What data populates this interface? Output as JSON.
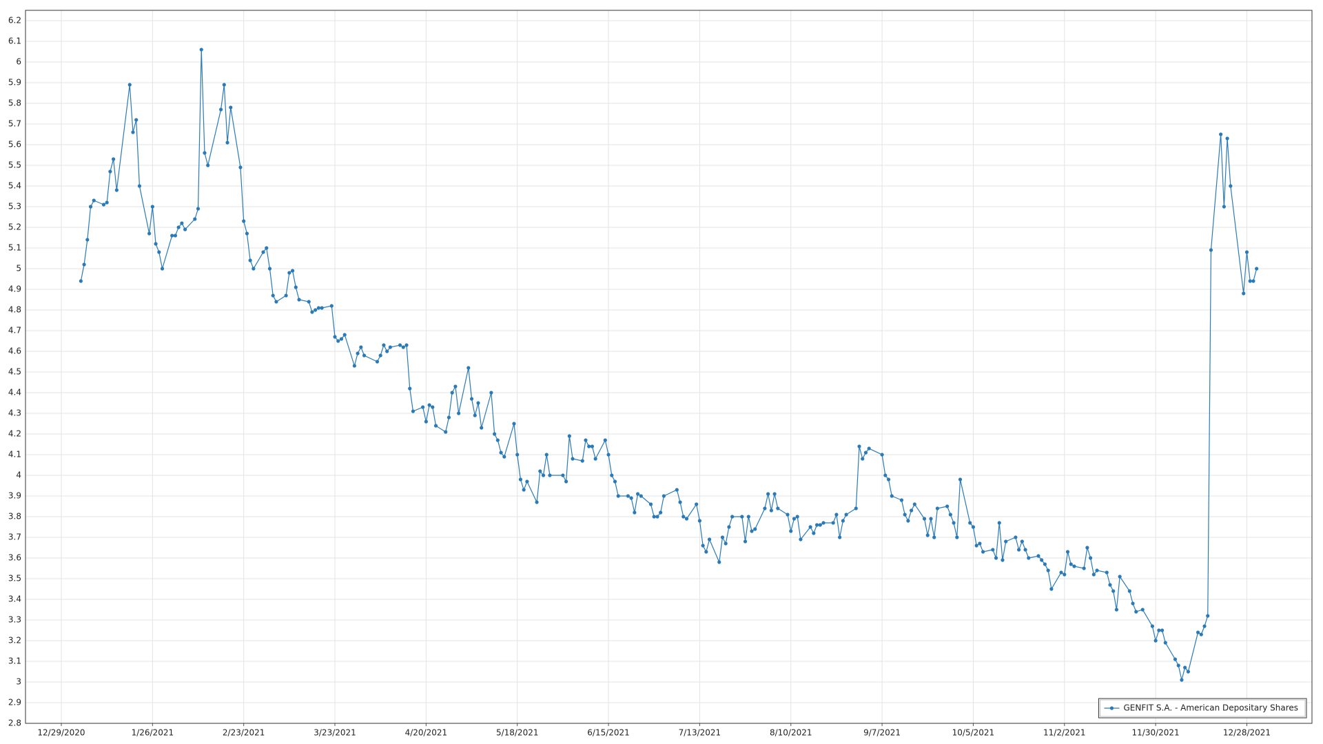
{
  "chart_data": {
    "type": "line",
    "x": [
      "1/4/2021",
      "1/5/2021",
      "1/6/2021",
      "1/7/2021",
      "1/8/2021",
      "1/11/2021",
      "1/12/2021",
      "1/13/2021",
      "1/14/2021",
      "1/15/2021",
      "1/19/2021",
      "1/20/2021",
      "1/21/2021",
      "1/22/2021",
      "1/25/2021",
      "1/26/2021",
      "1/27/2021",
      "1/28/2021",
      "1/29/2021",
      "2/1/2021",
      "2/2/2021",
      "2/3/2021",
      "2/4/2021",
      "2/5/2021",
      "2/8/2021",
      "2/9/2021",
      "2/10/2021",
      "2/11/2021",
      "2/12/2021",
      "2/16/2021",
      "2/17/2021",
      "2/18/2021",
      "2/19/2021",
      "2/22/2021",
      "2/23/2021",
      "2/24/2021",
      "2/25/2021",
      "2/26/2021",
      "3/1/2021",
      "3/2/2021",
      "3/3/2021",
      "3/4/2021",
      "3/5/2021",
      "3/8/2021",
      "3/9/2021",
      "3/10/2021",
      "3/11/2021",
      "3/12/2021",
      "3/15/2021",
      "3/16/2021",
      "3/17/2021",
      "3/18/2021",
      "3/19/2021",
      "3/22/2021",
      "3/23/2021",
      "3/24/2021",
      "3/25/2021",
      "3/26/2021",
      "3/29/2021",
      "3/30/2021",
      "3/31/2021",
      "4/1/2021",
      "4/5/2021",
      "4/6/2021",
      "4/7/2021",
      "4/8/2021",
      "4/9/2021",
      "4/12/2021",
      "4/13/2021",
      "4/14/2021",
      "4/15/2021",
      "4/16/2021",
      "4/19/2021",
      "4/20/2021",
      "4/21/2021",
      "4/22/2021",
      "4/23/2021",
      "4/26/2021",
      "4/27/2021",
      "4/28/2021",
      "4/29/2021",
      "4/30/2021",
      "5/3/2021",
      "5/4/2021",
      "5/5/2021",
      "5/6/2021",
      "5/7/2021",
      "5/10/2021",
      "5/11/2021",
      "5/12/2021",
      "5/13/2021",
      "5/14/2021",
      "5/17/2021",
      "5/18/2021",
      "5/19/2021",
      "5/20/2021",
      "5/21/2021",
      "5/24/2021",
      "5/25/2021",
      "5/26/2021",
      "5/27/2021",
      "5/28/2021",
      "6/1/2021",
      "6/2/2021",
      "6/3/2021",
      "6/4/2021",
      "6/7/2021",
      "6/8/2021",
      "6/9/2021",
      "6/10/2021",
      "6/11/2021",
      "6/14/2021",
      "6/15/2021",
      "6/16/2021",
      "6/17/2021",
      "6/18/2021",
      "6/21/2021",
      "6/22/2021",
      "6/23/2021",
      "6/24/2021",
      "6/25/2021",
      "6/28/2021",
      "6/29/2021",
      "6/30/2021",
      "7/1/2021",
      "7/2/2021",
      "7/6/2021",
      "7/7/2021",
      "7/8/2021",
      "7/9/2021",
      "7/12/2021",
      "7/13/2021",
      "7/14/2021",
      "7/15/2021",
      "7/16/2021",
      "7/19/2021",
      "7/20/2021",
      "7/21/2021",
      "7/22/2021",
      "7/23/2021",
      "7/26/2021",
      "7/27/2021",
      "7/28/2021",
      "7/29/2021",
      "7/30/2021",
      "8/2/2021",
      "8/3/2021",
      "8/4/2021",
      "8/5/2021",
      "8/6/2021",
      "8/9/2021",
      "8/10/2021",
      "8/11/2021",
      "8/12/2021",
      "8/13/2021",
      "8/16/2021",
      "8/17/2021",
      "8/18/2021",
      "8/19/2021",
      "8/20/2021",
      "8/23/2021",
      "8/24/2021",
      "8/25/2021",
      "8/26/2021",
      "8/27/2021",
      "8/30/2021",
      "8/31/2021",
      "9/1/2021",
      "9/2/2021",
      "9/3/2021",
      "9/7/2021",
      "9/8/2021",
      "9/9/2021",
      "9/10/2021",
      "9/13/2021",
      "9/14/2021",
      "9/15/2021",
      "9/16/2021",
      "9/17/2021",
      "9/20/2021",
      "9/21/2021",
      "9/22/2021",
      "9/23/2021",
      "9/24/2021",
      "9/27/2021",
      "9/28/2021",
      "9/29/2021",
      "9/30/2021",
      "10/1/2021",
      "10/4/2021",
      "10/5/2021",
      "10/6/2021",
      "10/7/2021",
      "10/8/2021",
      "10/11/2021",
      "10/12/2021",
      "10/13/2021",
      "10/14/2021",
      "10/15/2021",
      "10/18/2021",
      "10/19/2021",
      "10/20/2021",
      "10/21/2021",
      "10/22/2021",
      "10/25/2021",
      "10/26/2021",
      "10/27/2021",
      "10/28/2021",
      "10/29/2021",
      "11/1/2021",
      "11/2/2021",
      "11/3/2021",
      "11/4/2021",
      "11/5/2021",
      "11/8/2021",
      "11/9/2021",
      "11/10/2021",
      "11/11/2021",
      "11/12/2021",
      "11/15/2021",
      "11/16/2021",
      "11/17/2021",
      "11/18/2021",
      "11/19/2021",
      "11/22/2021",
      "11/23/2021",
      "11/24/2021",
      "11/26/2021",
      "11/29/2021",
      "11/30/2021",
      "12/1/2021",
      "12/2/2021",
      "12/3/2021",
      "12/6/2021",
      "12/7/2021",
      "12/8/2021",
      "12/9/2021",
      "12/10/2021",
      "12/13/2021",
      "12/14/2021",
      "12/15/2021",
      "12/16/2021",
      "12/17/2021",
      "12/20/2021",
      "12/21/2021",
      "12/22/2021",
      "12/23/2021",
      "12/27/2021",
      "12/28/2021",
      "12/29/2021",
      "12/30/2021",
      "12/31/2021"
    ],
    "series": [
      {
        "name": "GENFIT S.A. - American Depositary Shares",
        "color": "#2a7ab8",
        "values": [
          4.94,
          5.02,
          5.14,
          5.3,
          5.33,
          5.31,
          5.32,
          5.47,
          5.53,
          5.38,
          5.89,
          5.66,
          5.72,
          5.4,
          5.17,
          5.3,
          5.12,
          5.08,
          5.0,
          5.16,
          5.16,
          5.2,
          5.22,
          5.19,
          5.24,
          5.29,
          6.06,
          5.56,
          5.5,
          5.77,
          5.89,
          5.61,
          5.78,
          5.49,
          5.23,
          5.17,
          5.04,
          5.0,
          5.08,
          5.1,
          5.0,
          4.87,
          4.84,
          4.87,
          4.98,
          4.99,
          4.91,
          4.85,
          4.84,
          4.79,
          4.8,
          4.81,
          4.81,
          4.82,
          4.67,
          4.65,
          4.66,
          4.68,
          4.53,
          4.59,
          4.62,
          4.58,
          4.55,
          4.58,
          4.63,
          4.6,
          4.62,
          4.63,
          4.62,
          4.63,
          4.42,
          4.31,
          4.33,
          4.26,
          4.34,
          4.33,
          4.24,
          4.21,
          4.28,
          4.4,
          4.43,
          4.3,
          4.52,
          4.37,
          4.29,
          4.35,
          4.23,
          4.4,
          4.2,
          4.17,
          4.11,
          4.09,
          4.25,
          4.1,
          3.98,
          3.93,
          3.97,
          3.87,
          4.02,
          4.0,
          4.1,
          4.0,
          4.0,
          3.97,
          4.19,
          4.08,
          4.07,
          4.17,
          4.14,
          4.14,
          4.08,
          4.17,
          4.1,
          4.0,
          3.97,
          3.9,
          3.9,
          3.89,
          3.82,
          3.91,
          3.9,
          3.86,
          3.8,
          3.8,
          3.82,
          3.9,
          3.93,
          3.87,
          3.8,
          3.79,
          3.86,
          3.78,
          3.66,
          3.63,
          3.69,
          3.58,
          3.7,
          3.67,
          3.75,
          3.8,
          3.8,
          3.68,
          3.8,
          3.73,
          3.74,
          3.84,
          3.91,
          3.83,
          3.91,
          3.84,
          3.81,
          3.73,
          3.79,
          3.8,
          3.69,
          3.75,
          3.72,
          3.76,
          3.76,
          3.77,
          3.77,
          3.81,
          3.7,
          3.78,
          3.81,
          3.84,
          4.14,
          4.08,
          4.11,
          4.13,
          4.1,
          4.0,
          3.98,
          3.9,
          3.88,
          3.81,
          3.78,
          3.83,
          3.86,
          3.79,
          3.71,
          3.79,
          3.7,
          3.84,
          3.85,
          3.81,
          3.77,
          3.7,
          3.98,
          3.77,
          3.75,
          3.66,
          3.67,
          3.63,
          3.64,
          3.6,
          3.77,
          3.59,
          3.68,
          3.7,
          3.64,
          3.68,
          3.64,
          3.6,
          3.61,
          3.59,
          3.57,
          3.54,
          3.45,
          3.53,
          3.52,
          3.63,
          3.57,
          3.56,
          3.55,
          3.65,
          3.6,
          3.52,
          3.54,
          3.53,
          3.47,
          3.44,
          3.35,
          3.51,
          3.44,
          3.38,
          3.34,
          3.35,
          3.27,
          3.2,
          3.25,
          3.25,
          3.19,
          3.11,
          3.08,
          3.01,
          3.07,
          3.05,
          3.24,
          3.23,
          3.27,
          3.32,
          5.09,
          5.65,
          5.3,
          5.63,
          5.4,
          4.88,
          5.08,
          4.94,
          4.94,
          5.0
        ]
      }
    ],
    "xlim": [
      "12/18/2020",
      "1/17/2022"
    ],
    "xticks": [
      "12/29/2020",
      "1/26/2021",
      "2/23/2021",
      "3/23/2021",
      "4/20/2021",
      "5/18/2021",
      "6/15/2021",
      "7/13/2021",
      "8/10/2021",
      "9/7/2021",
      "10/5/2021",
      "11/2/2021",
      "11/30/2021",
      "12/28/2021"
    ],
    "ylim": [
      2.8,
      6.25
    ],
    "yticks": [
      2.8,
      2.9,
      3,
      3.1,
      3.2,
      3.3,
      3.4,
      3.5,
      3.6,
      3.7,
      3.8,
      3.9,
      4,
      4.1,
      4.2,
      4.3,
      4.4,
      4.5,
      4.6,
      4.7,
      4.8,
      4.9,
      5,
      5.1,
      5.2,
      5.3,
      5.4,
      5.5,
      5.6,
      5.7,
      5.8,
      5.9,
      6,
      6.1,
      6.2
    ],
    "grid": true,
    "legend": "lower right"
  }
}
